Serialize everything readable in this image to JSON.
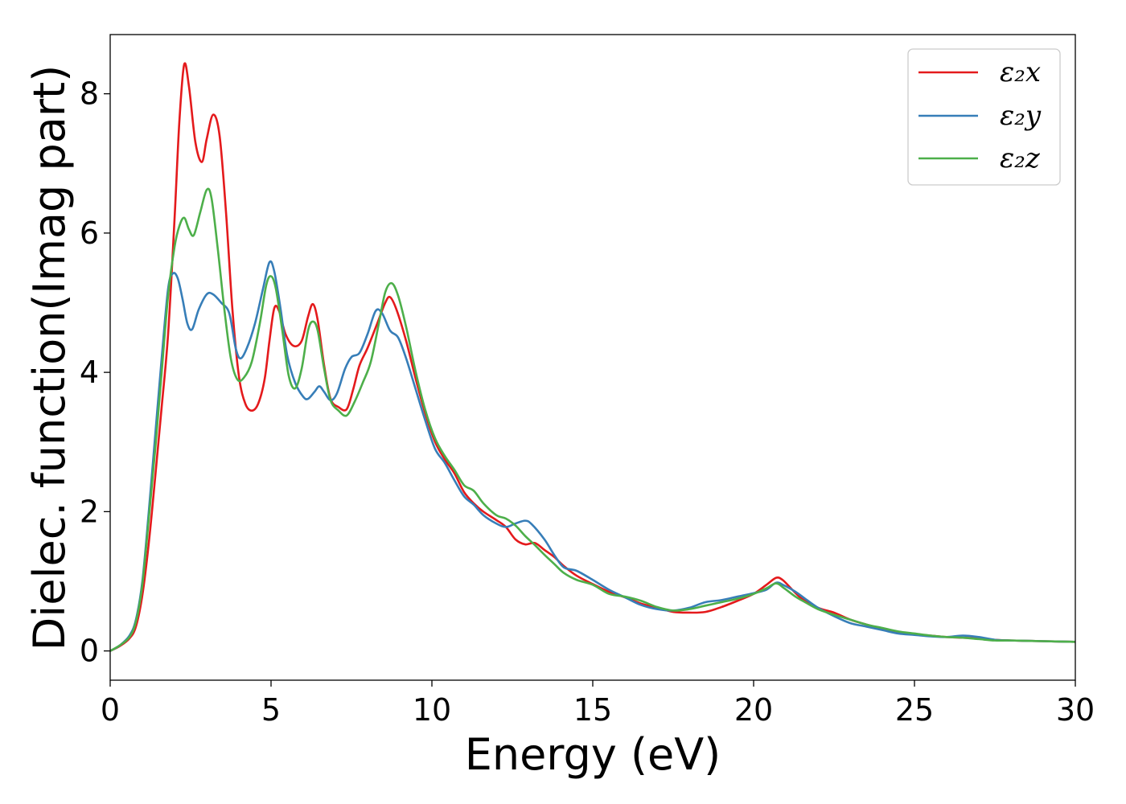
{
  "chart_data": {
    "type": "line",
    "title": "",
    "xlabel": "Energy (eV)",
    "ylabel": "Dielec. function(Imag part)",
    "xlim": [
      0,
      30
    ],
    "ylim": [
      -0.42,
      8.85
    ],
    "xticks": [
      0,
      5,
      10,
      15,
      20,
      25,
      30
    ],
    "yticks": [
      0,
      2,
      4,
      6,
      8
    ],
    "grid": false,
    "legend_position": "top-right",
    "series": [
      {
        "name": "ε₂x",
        "color": "#e41a1c",
        "points": [
          [
            0,
            0
          ],
          [
            0.3,
            0.07
          ],
          [
            0.6,
            0.18
          ],
          [
            0.8,
            0.35
          ],
          [
            1.0,
            0.8
          ],
          [
            1.2,
            1.55
          ],
          [
            1.4,
            2.5
          ],
          [
            1.6,
            3.5
          ],
          [
            1.8,
            4.55
          ],
          [
            2.0,
            6.2
          ],
          [
            2.15,
            7.6
          ],
          [
            2.3,
            8.42
          ],
          [
            2.45,
            8.1
          ],
          [
            2.65,
            7.3
          ],
          [
            2.85,
            7.02
          ],
          [
            3.0,
            7.35
          ],
          [
            3.2,
            7.7
          ],
          [
            3.4,
            7.4
          ],
          [
            3.6,
            6.3
          ],
          [
            3.8,
            4.9
          ],
          [
            4.0,
            3.95
          ],
          [
            4.2,
            3.55
          ],
          [
            4.4,
            3.45
          ],
          [
            4.6,
            3.55
          ],
          [
            4.8,
            3.9
          ],
          [
            4.95,
            4.45
          ],
          [
            5.1,
            4.92
          ],
          [
            5.25,
            4.88
          ],
          [
            5.45,
            4.55
          ],
          [
            5.7,
            4.38
          ],
          [
            5.95,
            4.45
          ],
          [
            6.15,
            4.8
          ],
          [
            6.3,
            4.98
          ],
          [
            6.45,
            4.75
          ],
          [
            6.65,
            4.1
          ],
          [
            6.85,
            3.62
          ],
          [
            7.1,
            3.5
          ],
          [
            7.35,
            3.47
          ],
          [
            7.55,
            3.75
          ],
          [
            7.75,
            4.1
          ],
          [
            8.0,
            4.35
          ],
          [
            8.3,
            4.7
          ],
          [
            8.55,
            5.0
          ],
          [
            8.7,
            5.08
          ],
          [
            8.9,
            4.9
          ],
          [
            9.2,
            4.45
          ],
          [
            9.5,
            3.9
          ],
          [
            9.8,
            3.4
          ],
          [
            10.1,
            3.0
          ],
          [
            10.4,
            2.75
          ],
          [
            10.7,
            2.55
          ],
          [
            11.0,
            2.28
          ],
          [
            11.3,
            2.12
          ],
          [
            11.6,
            2.0
          ],
          [
            12.0,
            1.88
          ],
          [
            12.3,
            1.78
          ],
          [
            12.6,
            1.6
          ],
          [
            12.9,
            1.53
          ],
          [
            13.2,
            1.55
          ],
          [
            13.5,
            1.45
          ],
          [
            13.8,
            1.35
          ],
          [
            14.1,
            1.22
          ],
          [
            14.5,
            1.08
          ],
          [
            15.0,
            0.96
          ],
          [
            15.5,
            0.85
          ],
          [
            16.0,
            0.77
          ],
          [
            16.5,
            0.68
          ],
          [
            17.0,
            0.62
          ],
          [
            17.5,
            0.56
          ],
          [
            18.0,
            0.55
          ],
          [
            18.5,
            0.56
          ],
          [
            19.0,
            0.63
          ],
          [
            19.5,
            0.72
          ],
          [
            20.0,
            0.82
          ],
          [
            20.4,
            0.95
          ],
          [
            20.7,
            1.05
          ],
          [
            20.9,
            1.02
          ],
          [
            21.2,
            0.88
          ],
          [
            21.5,
            0.75
          ],
          [
            22.0,
            0.62
          ],
          [
            22.5,
            0.55
          ],
          [
            23.0,
            0.45
          ],
          [
            23.5,
            0.38
          ],
          [
            24.0,
            0.32
          ],
          [
            24.5,
            0.27
          ],
          [
            25.0,
            0.24
          ],
          [
            25.5,
            0.22
          ],
          [
            26.0,
            0.2
          ],
          [
            26.5,
            0.19
          ],
          [
            27.0,
            0.18
          ],
          [
            27.5,
            0.16
          ],
          [
            28.0,
            0.15
          ],
          [
            29.0,
            0.14
          ],
          [
            30.0,
            0.13
          ]
        ]
      },
      {
        "name": "ε₂y",
        "color": "#377eb8",
        "points": [
          [
            0,
            0
          ],
          [
            0.3,
            0.08
          ],
          [
            0.6,
            0.22
          ],
          [
            0.8,
            0.45
          ],
          [
            1.0,
            1.0
          ],
          [
            1.2,
            2.0
          ],
          [
            1.4,
            3.1
          ],
          [
            1.6,
            4.2
          ],
          [
            1.8,
            5.2
          ],
          [
            1.95,
            5.42
          ],
          [
            2.1,
            5.35
          ],
          [
            2.25,
            5.05
          ],
          [
            2.4,
            4.7
          ],
          [
            2.55,
            4.62
          ],
          [
            2.75,
            4.9
          ],
          [
            3.0,
            5.12
          ],
          [
            3.2,
            5.12
          ],
          [
            3.45,
            5.0
          ],
          [
            3.7,
            4.85
          ],
          [
            3.9,
            4.35
          ],
          [
            4.05,
            4.2
          ],
          [
            4.25,
            4.35
          ],
          [
            4.5,
            4.7
          ],
          [
            4.75,
            5.2
          ],
          [
            4.95,
            5.58
          ],
          [
            5.1,
            5.45
          ],
          [
            5.3,
            4.9
          ],
          [
            5.5,
            4.25
          ],
          [
            5.75,
            3.85
          ],
          [
            6.0,
            3.65
          ],
          [
            6.15,
            3.62
          ],
          [
            6.35,
            3.72
          ],
          [
            6.5,
            3.8
          ],
          [
            6.65,
            3.72
          ],
          [
            6.85,
            3.6
          ],
          [
            7.05,
            3.7
          ],
          [
            7.3,
            4.05
          ],
          [
            7.5,
            4.22
          ],
          [
            7.75,
            4.28
          ],
          [
            8.0,
            4.55
          ],
          [
            8.25,
            4.88
          ],
          [
            8.45,
            4.85
          ],
          [
            8.7,
            4.6
          ],
          [
            8.95,
            4.5
          ],
          [
            9.2,
            4.2
          ],
          [
            9.5,
            3.75
          ],
          [
            9.8,
            3.3
          ],
          [
            10.1,
            2.9
          ],
          [
            10.4,
            2.7
          ],
          [
            10.7,
            2.45
          ],
          [
            11.0,
            2.22
          ],
          [
            11.3,
            2.1
          ],
          [
            11.6,
            1.95
          ],
          [
            12.0,
            1.83
          ],
          [
            12.3,
            1.78
          ],
          [
            12.6,
            1.83
          ],
          [
            12.9,
            1.87
          ],
          [
            13.1,
            1.82
          ],
          [
            13.5,
            1.6
          ],
          [
            13.8,
            1.38
          ],
          [
            14.1,
            1.2
          ],
          [
            14.5,
            1.15
          ],
          [
            15.0,
            1.02
          ],
          [
            15.5,
            0.88
          ],
          [
            16.0,
            0.77
          ],
          [
            16.5,
            0.66
          ],
          [
            17.0,
            0.6
          ],
          [
            17.5,
            0.58
          ],
          [
            18.0,
            0.62
          ],
          [
            18.5,
            0.7
          ],
          [
            19.0,
            0.73
          ],
          [
            19.5,
            0.78
          ],
          [
            20.0,
            0.83
          ],
          [
            20.4,
            0.88
          ],
          [
            20.7,
            0.98
          ],
          [
            20.95,
            0.94
          ],
          [
            21.3,
            0.85
          ],
          [
            21.6,
            0.75
          ],
          [
            22.0,
            0.62
          ],
          [
            22.5,
            0.5
          ],
          [
            23.0,
            0.4
          ],
          [
            23.5,
            0.35
          ],
          [
            24.0,
            0.3
          ],
          [
            24.5,
            0.25
          ],
          [
            25.0,
            0.23
          ],
          [
            25.5,
            0.21
          ],
          [
            26.0,
            0.2
          ],
          [
            26.5,
            0.22
          ],
          [
            27.0,
            0.2
          ],
          [
            27.5,
            0.16
          ],
          [
            28.0,
            0.15
          ],
          [
            29.0,
            0.14
          ],
          [
            30.0,
            0.13
          ]
        ]
      },
      {
        "name": "ε₂z",
        "color": "#4daf4a",
        "points": [
          [
            0,
            0
          ],
          [
            0.3,
            0.08
          ],
          [
            0.6,
            0.2
          ],
          [
            0.8,
            0.42
          ],
          [
            1.0,
            0.95
          ],
          [
            1.2,
            1.9
          ],
          [
            1.4,
            2.9
          ],
          [
            1.6,
            4.0
          ],
          [
            1.8,
            5.1
          ],
          [
            2.0,
            5.8
          ],
          [
            2.15,
            6.1
          ],
          [
            2.3,
            6.22
          ],
          [
            2.45,
            6.05
          ],
          [
            2.6,
            5.97
          ],
          [
            2.8,
            6.3
          ],
          [
            3.0,
            6.62
          ],
          [
            3.15,
            6.5
          ],
          [
            3.35,
            5.75
          ],
          [
            3.55,
            4.9
          ],
          [
            3.75,
            4.2
          ],
          [
            3.95,
            3.9
          ],
          [
            4.15,
            3.92
          ],
          [
            4.4,
            4.15
          ],
          [
            4.65,
            4.7
          ],
          [
            4.85,
            5.25
          ],
          [
            5.0,
            5.38
          ],
          [
            5.15,
            5.2
          ],
          [
            5.35,
            4.6
          ],
          [
            5.55,
            3.95
          ],
          [
            5.75,
            3.77
          ],
          [
            5.95,
            4.05
          ],
          [
            6.15,
            4.6
          ],
          [
            6.3,
            4.73
          ],
          [
            6.45,
            4.6
          ],
          [
            6.65,
            4.05
          ],
          [
            6.85,
            3.6
          ],
          [
            7.1,
            3.45
          ],
          [
            7.35,
            3.38
          ],
          [
            7.6,
            3.58
          ],
          [
            7.85,
            3.85
          ],
          [
            8.1,
            4.15
          ],
          [
            8.35,
            4.7
          ],
          [
            8.55,
            5.15
          ],
          [
            8.75,
            5.28
          ],
          [
            8.95,
            5.1
          ],
          [
            9.2,
            4.65
          ],
          [
            9.5,
            4.0
          ],
          [
            9.8,
            3.45
          ],
          [
            10.1,
            3.05
          ],
          [
            10.4,
            2.8
          ],
          [
            10.7,
            2.6
          ],
          [
            11.0,
            2.38
          ],
          [
            11.3,
            2.3
          ],
          [
            11.6,
            2.12
          ],
          [
            12.0,
            1.95
          ],
          [
            12.3,
            1.9
          ],
          [
            12.6,
            1.8
          ],
          [
            12.9,
            1.65
          ],
          [
            13.2,
            1.52
          ],
          [
            13.5,
            1.38
          ],
          [
            13.8,
            1.25
          ],
          [
            14.1,
            1.12
          ],
          [
            14.5,
            1.02
          ],
          [
            15.0,
            0.95
          ],
          [
            15.5,
            0.82
          ],
          [
            16.0,
            0.78
          ],
          [
            16.5,
            0.72
          ],
          [
            17.0,
            0.63
          ],
          [
            17.5,
            0.58
          ],
          [
            18.0,
            0.6
          ],
          [
            18.5,
            0.65
          ],
          [
            19.0,
            0.7
          ],
          [
            19.5,
            0.75
          ],
          [
            20.0,
            0.82
          ],
          [
            20.4,
            0.9
          ],
          [
            20.7,
            0.97
          ],
          [
            20.95,
            0.9
          ],
          [
            21.3,
            0.78
          ],
          [
            21.6,
            0.7
          ],
          [
            22.0,
            0.6
          ],
          [
            22.5,
            0.52
          ],
          [
            23.0,
            0.45
          ],
          [
            23.5,
            0.38
          ],
          [
            24.0,
            0.33
          ],
          [
            24.5,
            0.28
          ],
          [
            25.0,
            0.25
          ],
          [
            25.5,
            0.22
          ],
          [
            26.0,
            0.2
          ],
          [
            26.5,
            0.19
          ],
          [
            27.0,
            0.17
          ],
          [
            27.5,
            0.15
          ],
          [
            28.0,
            0.15
          ],
          [
            29.0,
            0.14
          ],
          [
            30.0,
            0.13
          ]
        ]
      }
    ]
  }
}
